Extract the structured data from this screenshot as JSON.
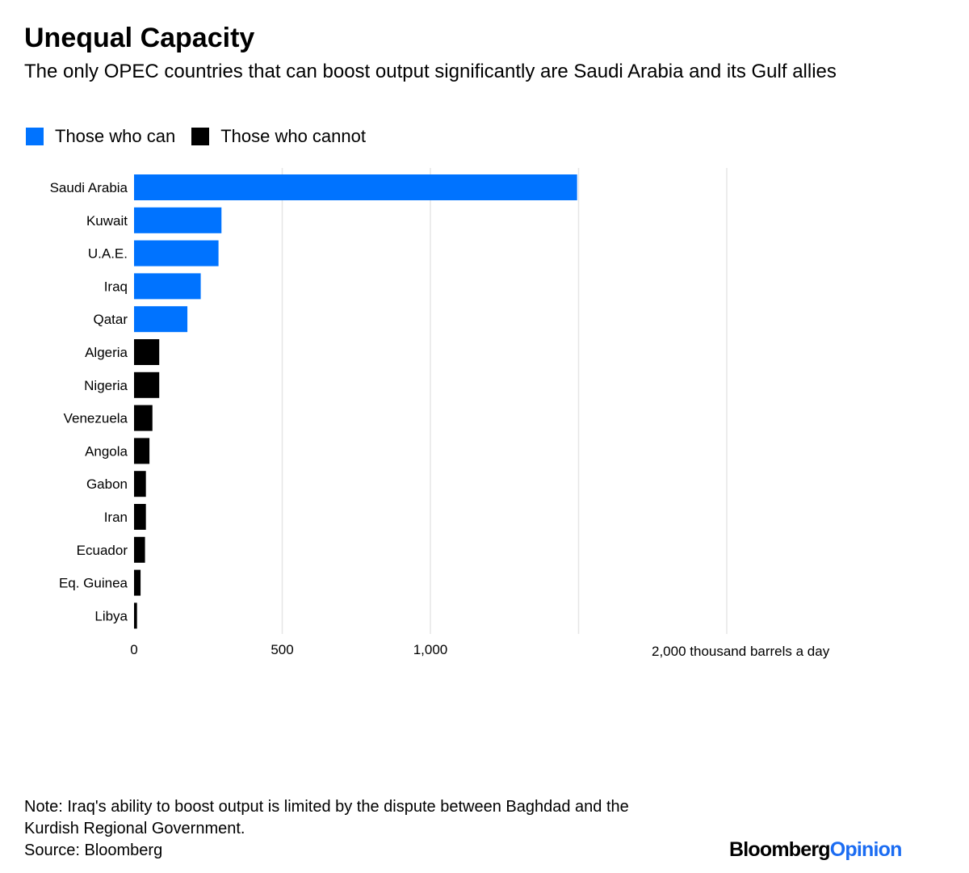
{
  "colors": {
    "can": "#0073ff",
    "cannot": "#000000",
    "grid": "#e6e6e6",
    "brand_accent": "#1b6cf2"
  },
  "header": {
    "title": "Unequal Capacity",
    "subtitle": "The only OPEC countries that can boost output significantly are Saudi Arabia and its Gulf allies"
  },
  "legend": {
    "can_label": "Those who can",
    "cannot_label": "Those who cannot"
  },
  "chart_data": {
    "type": "bar",
    "orientation": "horizontal",
    "categories": [
      "Saudi Arabia",
      "Kuwait",
      "U.A.E.",
      "Iraq",
      "Qatar",
      "Algeria",
      "Nigeria",
      "Venezuela",
      "Angola",
      "Gabon",
      "Iran",
      "Ecuador",
      "Eq. Guinea",
      "Libya"
    ],
    "values": [
      1495,
      295,
      285,
      225,
      180,
      85,
      85,
      62,
      52,
      40,
      40,
      37,
      22,
      10
    ],
    "groups": [
      "can",
      "can",
      "can",
      "can",
      "can",
      "cannot",
      "cannot",
      "cannot",
      "cannot",
      "cannot",
      "cannot",
      "cannot",
      "cannot",
      "cannot"
    ],
    "xlim": [
      0,
      2000
    ],
    "grid_values": [
      0,
      500,
      1000,
      1500,
      2000
    ],
    "xticks": [
      {
        "value": 0,
        "label": "0"
      },
      {
        "value": 500,
        "label": "500"
      },
      {
        "value": 1000,
        "label": "1,000"
      },
      {
        "value": 2000,
        "label": "2,000 thousand barrels a day"
      }
    ],
    "title": "Unequal Capacity",
    "xlabel": "thousand barrels a day",
    "ylabel": ""
  },
  "footer": {
    "note_line1": "Note: Iraq's ability to boost output is limited by the dispute between Baghdad and the",
    "note_line2": "Kurdish Regional Government.",
    "source": "Source: Bloomberg",
    "brand_part1": "Bloomberg",
    "brand_part2": "Opinion"
  }
}
